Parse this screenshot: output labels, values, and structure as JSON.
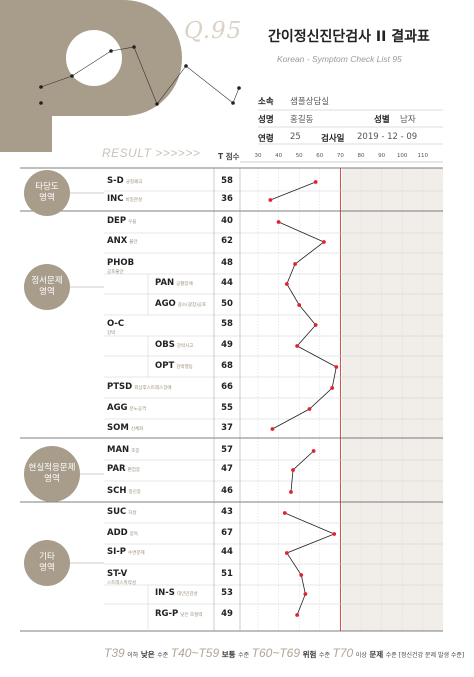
{
  "header": {
    "number": "Q.95",
    "title": "간이정신진단검사 II 결과표",
    "subtitle": "Korean - Symptom Check List 95"
  },
  "info": {
    "affiliation_label": "소속",
    "affiliation_value": "샘플상담실",
    "name_label": "성명",
    "name_value": "홍길동",
    "gender_label": "성별",
    "gender_value": "남자",
    "age_label": "연령",
    "age_value": "25",
    "date_label": "검사일",
    "date_value": "2019 - 12 - 09"
  },
  "result_label": "RESULT >>>>>>",
  "tscore_header": "T 점수",
  "axis_ticks": [
    "30",
    "40",
    "50",
    "60",
    "70",
    "80",
    "90",
    "100",
    "110"
  ],
  "groups": [
    {
      "name": "타당도",
      "sub": "영역"
    },
    {
      "name": "정서문제",
      "sub": "영역"
    },
    {
      "name": "현실적응문제",
      "sub": "영역"
    },
    {
      "name": "기타",
      "sub": "영역"
    }
  ],
  "rows": [
    {
      "code": "S-D",
      "kr": "긍정왜곡",
      "t": "58"
    },
    {
      "code": "INC",
      "kr": "비일관성",
      "t": "36"
    },
    {
      "code": "DEP",
      "kr": "우울",
      "t": "40"
    },
    {
      "code": "ANX",
      "kr": "불안",
      "t": "62"
    },
    {
      "code": "PHOB",
      "kr": "공포불안",
      "t": "48"
    },
    {
      "code": "PAN",
      "kr": "공황장애",
      "t": "44"
    },
    {
      "code": "AGO",
      "kr": "광소(광장)공포",
      "t": "50"
    },
    {
      "code": "O-C",
      "kr": "강박",
      "t": "58"
    },
    {
      "code": "OBS",
      "kr": "강박사고",
      "t": "49"
    },
    {
      "code": "OPT",
      "kr": "강박행동",
      "t": "68"
    },
    {
      "code": "PTSD",
      "kr": "외상후스트레스장애",
      "t": "66"
    },
    {
      "code": "AGG",
      "kr": "분노공격",
      "t": "55"
    },
    {
      "code": "SOM",
      "kr": "신체화",
      "t": "37"
    },
    {
      "code": "MAN",
      "kr": "조증",
      "t": "57"
    },
    {
      "code": "PAR",
      "kr": "편집증",
      "t": "47"
    },
    {
      "code": "SCH",
      "kr": "정신증",
      "t": "46"
    },
    {
      "code": "SUC",
      "kr": "자살",
      "t": "43"
    },
    {
      "code": "ADD",
      "kr": "중독",
      "t": "67"
    },
    {
      "code": "SI-P",
      "kr": "수면문제",
      "t": "44"
    },
    {
      "code": "ST-V",
      "kr": "스트레스취약성",
      "t": "51"
    },
    {
      "code": "IN-S",
      "kr": "대인민감성",
      "t": "53"
    },
    {
      "code": "RG-P",
      "kr": "낮은 조절력",
      "t": "49"
    }
  ],
  "chart_data": {
    "type": "line",
    "title": "",
    "xlim": [
      30,
      110
    ],
    "xticks": [
      30,
      40,
      50,
      60,
      70,
      80,
      90,
      100,
      110
    ],
    "cutoff": 70,
    "segments": [
      {
        "scales": [
          "S-D",
          "INC"
        ],
        "values": [
          58,
          36
        ]
      },
      {
        "scales": [
          "DEP",
          "ANX",
          "PHOB",
          "PAN",
          "AGO",
          "O-C",
          "OBS",
          "OPT",
          "PTSD",
          "AGG",
          "SOM"
        ],
        "values": [
          40,
          62,
          48,
          44,
          50,
          58,
          49,
          68,
          66,
          55,
          37
        ]
      },
      {
        "scales": [
          "MAN",
          "PAR",
          "SCH"
        ],
        "values": [
          57,
          47,
          46
        ]
      },
      {
        "scales": [
          "SUC",
          "ADD",
          "SI-P",
          "ST-V",
          "IN-S",
          "RG-P"
        ],
        "values": [
          43,
          67,
          44,
          51,
          53,
          49
        ]
      }
    ],
    "colors": {
      "point": "#e0242e",
      "line": "#222222",
      "cutoff": "#c23b3b",
      "accent": "#a89c8b"
    }
  },
  "legend": [
    {
      "t": "T39",
      "txt": "이하",
      "level": "낮은",
      "tail": "수준"
    },
    {
      "t": "T40~T59",
      "txt": "",
      "level": "보통",
      "tail": "수준"
    },
    {
      "t": "T60~T69",
      "txt": "",
      "level": "위험",
      "tail": "수준"
    },
    {
      "t": "T70",
      "txt": "이상",
      "level": "문제",
      "tail": "수준 [정신건강 문제 발생 수준]"
    }
  ]
}
